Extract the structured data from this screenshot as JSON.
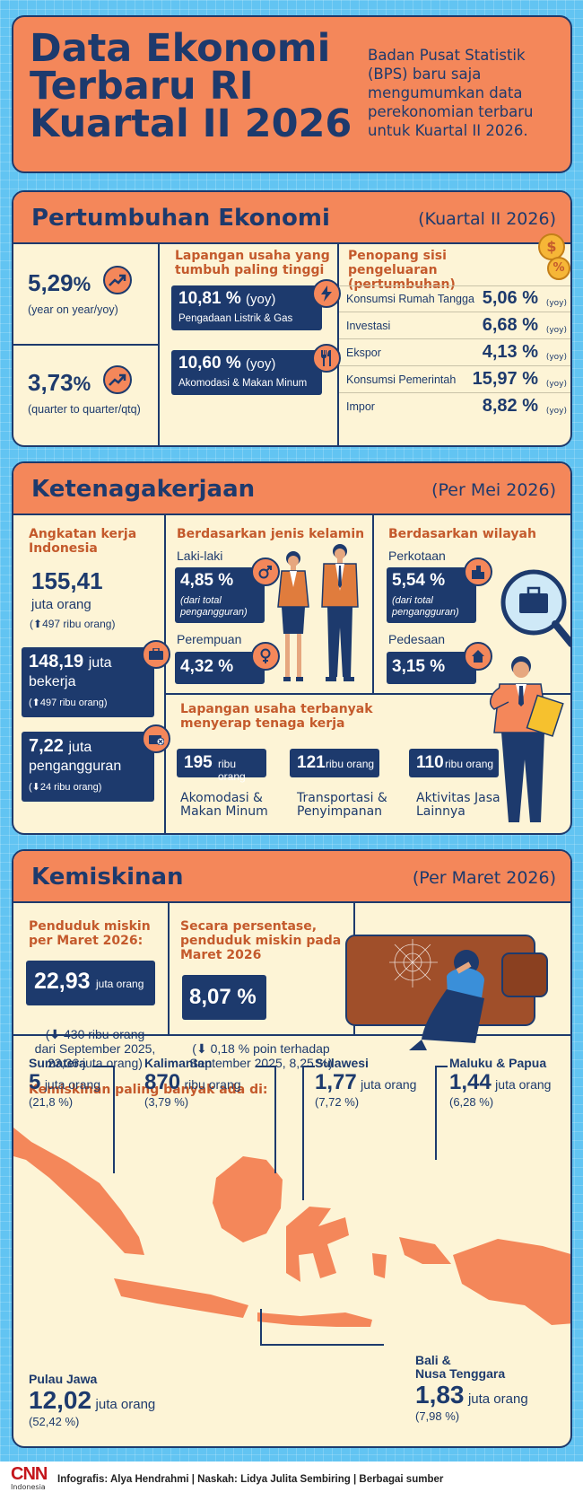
{
  "title": {
    "line1": "Data Ekonomi",
    "line2": "Terbaru RI",
    "line3": "Kuartal II 2026"
  },
  "intro": {
    "line1": "Badan Pusat Statistik",
    "line2": "(BPS) baru saja",
    "line3": "mengumumkan data",
    "line4": "perekonomian terbaru",
    "line5": "untuk Kuartal II 2026."
  },
  "growth": {
    "title": "Pertumbuhan Ekonomi",
    "period": "(Kuartal II 2026)",
    "yoy": {
      "value": "5,29",
      "unit": "%",
      "label": "(year on year/yoy)"
    },
    "qtq": {
      "value": "3,73",
      "unit": "%",
      "label": "(quarter to quarter/qtq)"
    },
    "sector_title": "Lapangan usaha yang tumbuh paling tinggi",
    "sectors": [
      {
        "value": "10,81",
        "unit": "%",
        "tag": "(yoy)",
        "name": "Pengadaan Listrik & Gas"
      },
      {
        "value": "10,60",
        "unit": "%",
        "tag": "(yoy)",
        "name": "Akomodasi & Makan Minum"
      }
    ],
    "spending_title": "Penopang sisi pengeluaran (pertumbuhan)",
    "spending": [
      {
        "name": "Konsumsi Rumah Tangga",
        "value": "5,06 %",
        "tag": "(yoy)"
      },
      {
        "name": "Investasi",
        "value": "6,68 %",
        "tag": "(yoy)"
      },
      {
        "name": "Ekspor",
        "value": "4,13 %",
        "tag": "(yoy)"
      },
      {
        "name": "Konsumsi Pemerintah",
        "value": "15,97 %",
        "tag": "(yoy)"
      },
      {
        "name": "Impor",
        "value": "8,82 %",
        "tag": "(yoy)"
      }
    ]
  },
  "employment": {
    "title": "Ketenagakerjaan",
    "period": "(Per Mei 2026)",
    "workforce_label": "Angkatan kerja Indonesia",
    "workforce_value": "155,41",
    "workforce_unit": "juta orang",
    "workforce_change": "497 ribu orang)",
    "working_value": "148,19",
    "working_unit": "juta",
    "working_label": "bekerja",
    "working_change": "497 ribu orang)",
    "unemployed_value": "7,22",
    "unemployed_unit": "juta",
    "unemployed_label": "pengangguran",
    "unemployed_change": "24 ribu orang)",
    "gender_title": "Berdasarkan jenis kelamin",
    "male_label": "Laki-laki",
    "male_value": "4,85 %",
    "male_note": "(dari total pengangguran)",
    "female_label": "Perempuan",
    "female_value": "4,32 %",
    "region_title": "Berdasarkan wilayah",
    "urban_label": "Perkotaan",
    "urban_value": "5,54 %",
    "urban_note": "(dari total pengangguran)",
    "rural_label": "Pedesaan",
    "rural_value": "3,15 %",
    "sector_title": "Lapangan usaha terbanyak menyerap tenaga kerja",
    "sectors": [
      {
        "value": "195",
        "unit": "ribu orang",
        "name1": "Akomodasi &",
        "name2": "Makan Minum"
      },
      {
        "value": "121",
        "unit": "ribu orang",
        "name1": "Transportasi &",
        "name2": "Penyimpanan"
      },
      {
        "value": "110",
        "unit": "ribu orang",
        "name1": "Aktivitas Jasa",
        "name2": "Lainnya"
      }
    ]
  },
  "poverty": {
    "title": "Kemiskinan",
    "period": "(Per Maret 2026)",
    "count_label": "Penduduk miskin per Maret 2026:",
    "count_value": "22,93",
    "count_unit": "juta orang",
    "count_note1": "430 ribu orang",
    "count_note2": "dari September 2025,",
    "count_note3": "23,36 juta orang)",
    "pct_label": "Secara persentase, penduduk miskin pada Maret 2026",
    "pct_value": "8,07 %",
    "pct_note1": "0,18 % poin terhadap",
    "pct_note2": "September 2025, 8,25 %)",
    "regions_title": "Kemiskinan paling banyak ada di:",
    "regions": {
      "sumatera": {
        "name": "Sumatera",
        "value": "5",
        "unit": "juta orang",
        "pct": "(21,8 %)"
      },
      "kalimantan": {
        "name": "Kalimantan",
        "value": "870",
        "unit": "ribu orang",
        "pct": "(3,79 %)"
      },
      "sulawesi": {
        "name": "Sulawesi",
        "value": "1,77",
        "unit": "juta orang",
        "pct": "(7,72 %)"
      },
      "maluku": {
        "name": "Maluku & Papua",
        "value": "1,44",
        "unit": "juta orang",
        "pct": "(6,28 %)"
      },
      "jawa": {
        "name": "Pulau Jawa",
        "value": "12,02",
        "unit": "juta orang",
        "pct": "(52,42 %)"
      },
      "bali": {
        "name1": "Bali &",
        "name2": "Nusa Tenggara",
        "value": "1,83",
        "unit": "juta orang",
        "pct": "(7,98 %)"
      }
    }
  },
  "footer": {
    "logo": "CNN",
    "logo_sub": "Indonesia",
    "credits": "Infografis: Alya Hendrahmi | Naskah: Lidya Julita Sembiring | Berbagai sumber"
  },
  "colors": {
    "navy": "#1d3a6d",
    "orange": "#f4875a",
    "cream": "#fdf4d6",
    "sky": "#62c4f2",
    "label_orange": "#c45a2c"
  }
}
